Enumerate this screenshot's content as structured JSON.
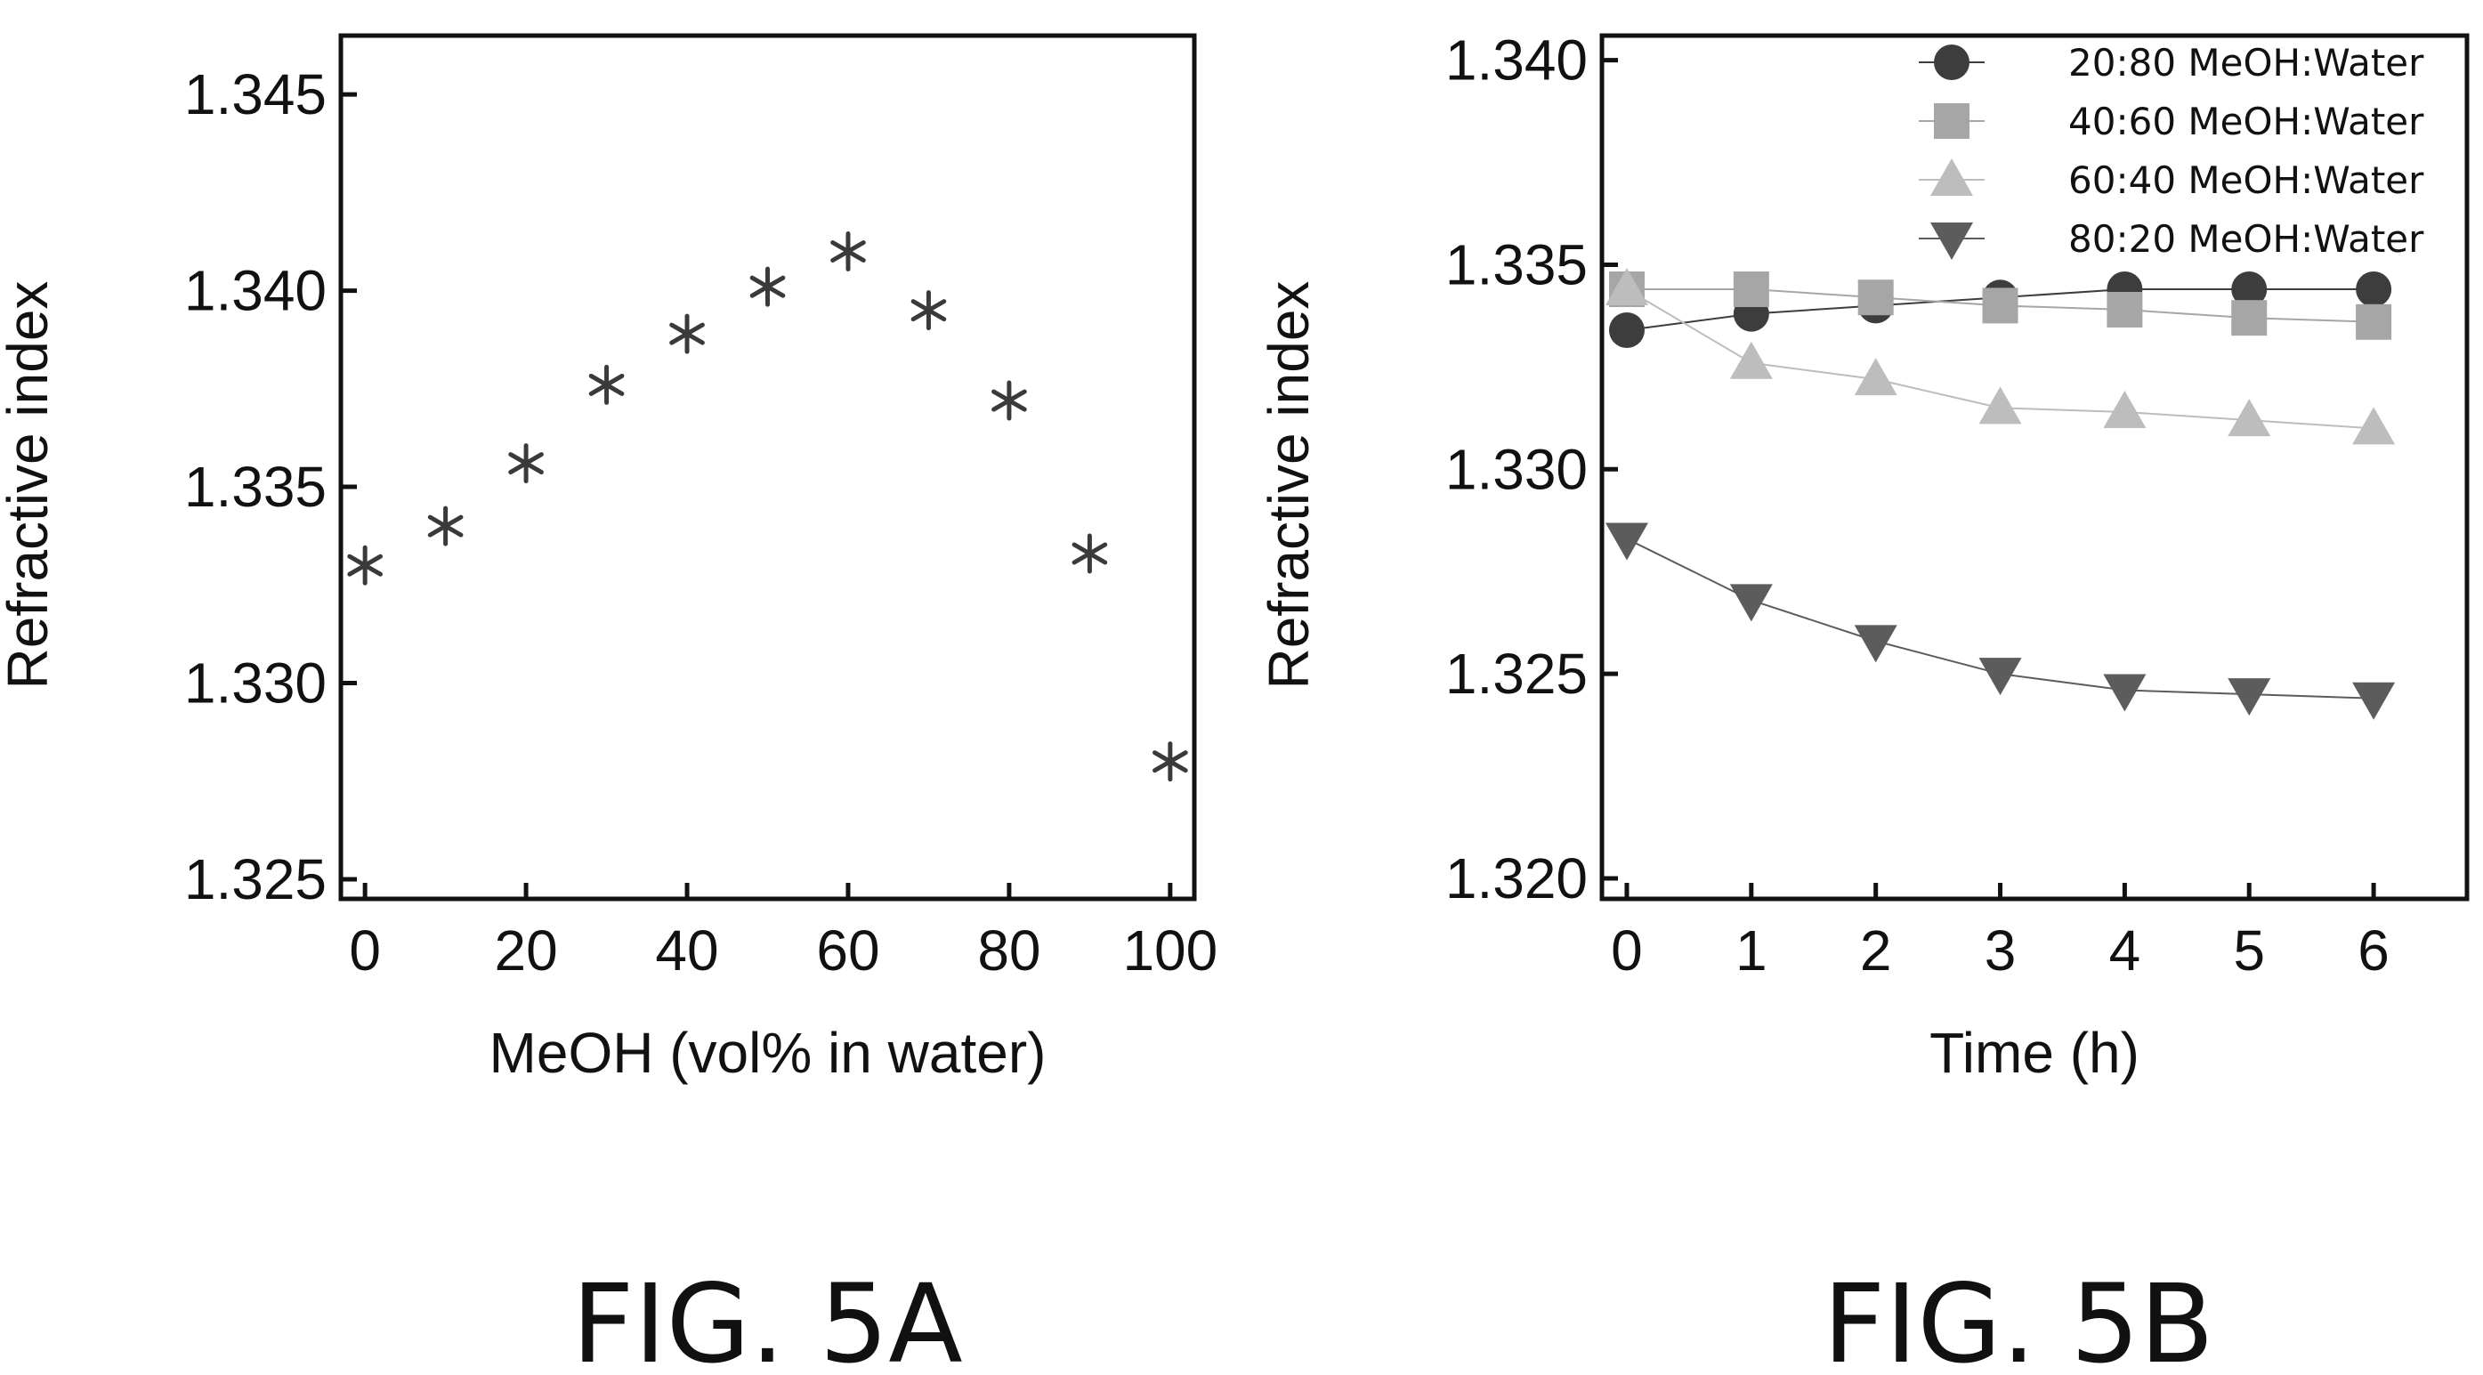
{
  "chart_data": [
    {
      "type": "scatter",
      "caption": "FIG. 5A",
      "xlabel": "MeOH (vol% in water)",
      "ylabel": "Refractive index",
      "xlim": [
        -3,
        103
      ],
      "ylim": [
        1.3245,
        1.3465
      ],
      "xticks": [
        0,
        20,
        40,
        60,
        80,
        100
      ],
      "xtick_labels": [
        "0",
        "20",
        "40",
        "60",
        "80",
        "100"
      ],
      "yticks": [
        1.325,
        1.33,
        1.335,
        1.34,
        1.345
      ],
      "ytick_labels": [
        "1.325",
        "1.330",
        "1.335",
        "1.340",
        "1.345"
      ],
      "grid": false,
      "marker": "asterisk",
      "color": "#3a3a3a",
      "series": [
        {
          "x": [
            0,
            10,
            20,
            30,
            40,
            50,
            60,
            70,
            80,
            90,
            100
          ],
          "y": [
            1.333,
            1.334,
            1.3356,
            1.3376,
            1.3389,
            1.3401,
            1.341,
            1.3395,
            1.3372,
            1.3333,
            1.328
          ]
        }
      ]
    },
    {
      "type": "line",
      "caption": "FIG. 5B",
      "xlabel": "Time (h)",
      "ylabel": "Refractive index",
      "xlim": [
        -0.2,
        6.75
      ],
      "ylim": [
        1.3195,
        1.3406
      ],
      "xticks": [
        0,
        1,
        2,
        3,
        4,
        5,
        6
      ],
      "xtick_labels": [
        "0",
        "1",
        "2",
        "3",
        "4",
        "5",
        "6"
      ],
      "yticks": [
        1.32,
        1.325,
        1.33,
        1.335,
        1.34
      ],
      "ytick_labels": [
        "1.320",
        "1.325",
        "1.330",
        "1.335",
        "1.340"
      ],
      "grid": false,
      "legend_position": "top-right",
      "x": [
        0,
        1,
        2,
        3,
        4,
        5,
        6
      ],
      "series": [
        {
          "name": "20:80 MeOH:Water",
          "marker": "circle",
          "color": "#3d3d3d",
          "values": [
            1.3334,
            1.3338,
            1.334,
            1.3342,
            1.3344,
            1.3344,
            1.3344
          ]
        },
        {
          "name": "40:60 MeOH:Water",
          "marker": "square",
          "color": "#a6a6a6",
          "values": [
            1.3344,
            1.3344,
            1.3342,
            1.334,
            1.3339,
            1.3337,
            1.3336
          ]
        },
        {
          "name": "60:40 MeOH:Water",
          "marker": "triangle-up",
          "color": "#bdbdbd",
          "values": [
            1.3344,
            1.3326,
            1.3322,
            1.3315,
            1.3314,
            1.3312,
            1.331
          ]
        },
        {
          "name": "80:20 MeOH:Water",
          "marker": "triangle-down",
          "color": "#5c5c5c",
          "values": [
            1.3283,
            1.3268,
            1.3258,
            1.325,
            1.3246,
            1.3245,
            1.3244
          ]
        }
      ]
    }
  ]
}
